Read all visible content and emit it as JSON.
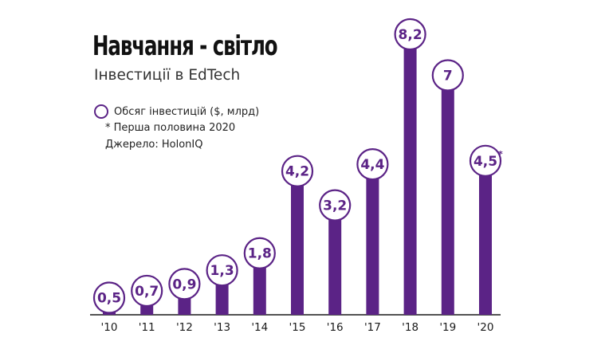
{
  "header": {
    "title": "Навчання - світло",
    "subtitle": "Інвестиції в EdTech"
  },
  "legend": {
    "label": "Обсяг інвестицій ($, млрд)",
    "note": "* Перша половина 2020",
    "source": "Джерело: HolonIQ"
  },
  "colors": {
    "bar": "#5b2386",
    "label_text": "#5b2386",
    "circle_fill": "#ffffff",
    "axis": "#1a1a1a"
  },
  "chart_data": {
    "type": "bar",
    "categories": [
      "'10",
      "'11",
      "'12",
      "'13",
      "'14",
      "'15",
      "'16",
      "'17",
      "'18",
      "'19",
      "'20"
    ],
    "values": [
      0.5,
      0.7,
      0.9,
      1.3,
      1.8,
      4.2,
      3.2,
      4.4,
      8.2,
      7,
      4.5
    ],
    "data_labels": [
      "0,5",
      "0,7",
      "0,9",
      "1,3",
      "1,8",
      "4,2",
      "3,2",
      "4,4",
      "8,2",
      "7",
      "4,5"
    ],
    "label_suffix": [
      "",
      "",
      "",
      "",
      "",
      "",
      "",
      "",
      "",
      "",
      "*"
    ],
    "title": "Навчання - світло",
    "subtitle": "Інвестиції в EdTech",
    "ylim": [
      0,
      8.2
    ],
    "grid": false,
    "legend_position": "top-left"
  }
}
